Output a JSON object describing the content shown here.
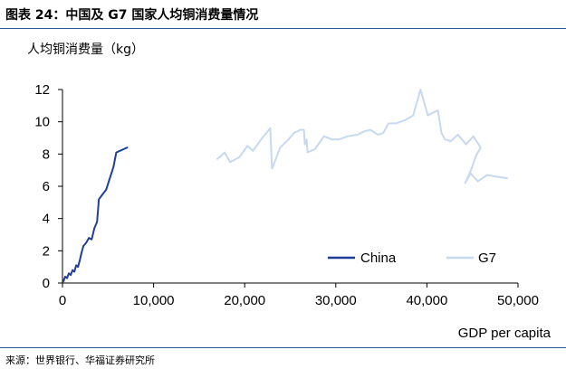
{
  "title": "图表 24：中国及 G7 国家人均铜消费量情况",
  "source": "来源：世界银行、华福证券研究所",
  "colors": {
    "china": "#1f3f99",
    "g7": "#c6d9f1",
    "rule": "#2f5597"
  },
  "chart_data": {
    "type": "line",
    "title": "",
    "ylabel": "人均铜消费量（kg）",
    "xlabel": "GDP per capita",
    "xlim": [
      0,
      50000
    ],
    "ylim": [
      0,
      12
    ],
    "x_ticks": [
      "0",
      "10,000",
      "20,000",
      "30,000",
      "40,000",
      "50,000"
    ],
    "y_ticks": [
      "0",
      "2",
      "4",
      "6",
      "8",
      "10",
      "12"
    ],
    "legend_position": "bottom-right",
    "grid": false,
    "series": [
      {
        "name": "China",
        "color": "#1f3f99",
        "points": [
          [
            100,
            0.1
          ],
          [
            300,
            0.4
          ],
          [
            500,
            0.3
          ],
          [
            700,
            0.6
          ],
          [
            900,
            0.5
          ],
          [
            1100,
            0.8
          ],
          [
            1300,
            0.7
          ],
          [
            1500,
            1.1
          ],
          [
            1700,
            1.0
          ],
          [
            1900,
            1.4
          ],
          [
            2100,
            1.9
          ],
          [
            2300,
            2.3
          ],
          [
            2600,
            2.5
          ],
          [
            2900,
            2.8
          ],
          [
            3200,
            2.7
          ],
          [
            3500,
            3.4
          ],
          [
            3800,
            3.8
          ],
          [
            4000,
            5.2
          ],
          [
            4400,
            5.5
          ],
          [
            4800,
            5.8
          ],
          [
            5200,
            6.5
          ],
          [
            5600,
            7.2
          ],
          [
            5900,
            8.1
          ],
          [
            6300,
            8.2
          ],
          [
            6700,
            8.3
          ],
          [
            7100,
            8.4
          ]
        ]
      },
      {
        "name": "G7",
        "color": "#c6d9f1",
        "points": [
          [
            17000,
            7.7
          ],
          [
            17800,
            8.1
          ],
          [
            18400,
            7.5
          ],
          [
            19400,
            7.8
          ],
          [
            20300,
            8.5
          ],
          [
            20900,
            8.2
          ],
          [
            21800,
            8.9
          ],
          [
            22800,
            9.6
          ],
          [
            23000,
            7.1
          ],
          [
            23900,
            8.4
          ],
          [
            24800,
            8.9
          ],
          [
            25400,
            9.3
          ],
          [
            26100,
            9.5
          ],
          [
            26500,
            9.5
          ],
          [
            26600,
            8.6
          ],
          [
            26800,
            8.9
          ],
          [
            26900,
            8.1
          ],
          [
            27700,
            8.3
          ],
          [
            28700,
            9.1
          ],
          [
            29600,
            8.9
          ],
          [
            30300,
            8.9
          ],
          [
            31300,
            9.1
          ],
          [
            32400,
            9.2
          ],
          [
            33100,
            9.4
          ],
          [
            33800,
            9.5
          ],
          [
            34600,
            9.2
          ],
          [
            35200,
            9.3
          ],
          [
            35800,
            9.9
          ],
          [
            36600,
            9.9
          ],
          [
            37600,
            10.1
          ],
          [
            38500,
            10.4
          ],
          [
            39300,
            12.0
          ],
          [
            40100,
            10.4
          ],
          [
            40800,
            10.6
          ],
          [
            41200,
            10.7
          ],
          [
            41600,
            9.3
          ],
          [
            42000,
            8.9
          ],
          [
            42600,
            8.8
          ],
          [
            43400,
            9.2
          ],
          [
            44300,
            8.6
          ],
          [
            45100,
            9.1
          ],
          [
            45900,
            8.4
          ],
          [
            45400,
            7.9
          ],
          [
            44900,
            7.1
          ],
          [
            44200,
            6.2
          ],
          [
            44800,
            6.8
          ],
          [
            45600,
            6.3
          ],
          [
            46600,
            6.7
          ],
          [
            47600,
            6.6
          ],
          [
            48800,
            6.5
          ]
        ]
      }
    ]
  }
}
